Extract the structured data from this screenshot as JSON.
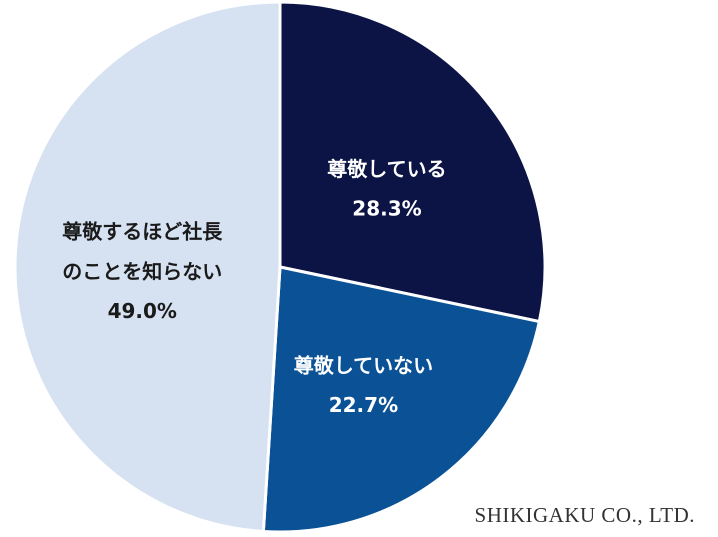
{
  "chart_data": {
    "type": "pie",
    "categories": [
      "尊敬している",
      "尊敬していない",
      "尊敬するほど社長\nのことを知らない"
    ],
    "values": [
      28.3,
      22.7,
      49.0
    ],
    "value_labels": [
      "28.3%",
      "22.7%",
      "49.0%"
    ],
    "colors": [
      "#0c1445",
      "#0a5196",
      "#d6e2f1"
    ],
    "source": "SHIKIGAKU CO., LTD."
  }
}
